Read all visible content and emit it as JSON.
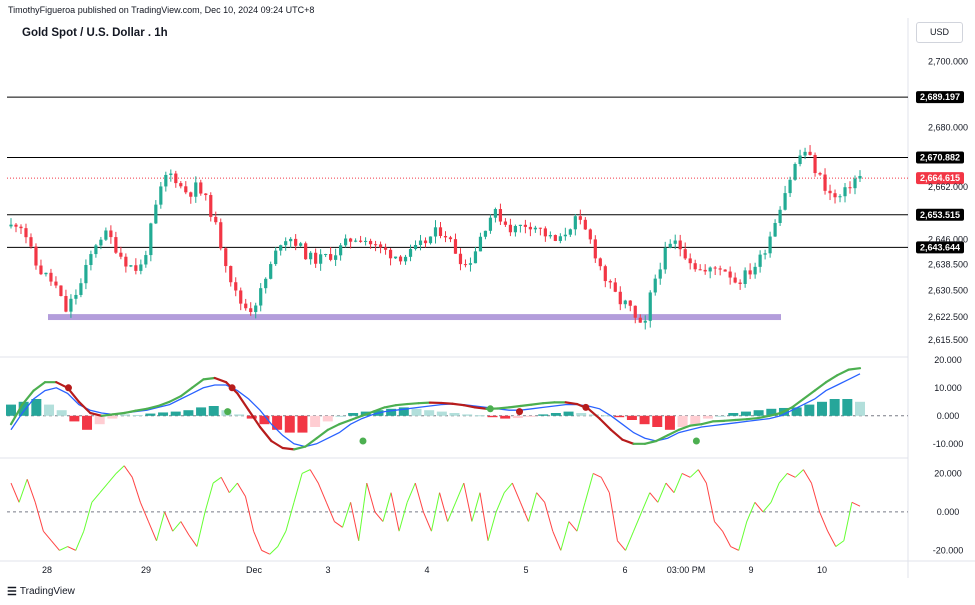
{
  "header": {
    "attribution": "TimothyFigueroa published on TradingView.com, Dec 10, 2024 09:24 UTC+8",
    "title": "Gold Spot / U.S. Dollar . 1h",
    "currency": "USD"
  },
  "footer": {
    "brand": "TradingView",
    "brand_icon": "tradingview-logo-icon"
  },
  "colors": {
    "bull": "#26a69a",
    "bull_candle": "#22ab94",
    "bear": "#f23645",
    "support_band": "#b39ddb",
    "macd_line": "#2962ff",
    "signal_up": "#4caf50",
    "signal_down": "#b71c1c",
    "osc_up": "#66ff33",
    "osc_down": "#ff4444",
    "hline": "#000000",
    "last_price": "#f23645"
  },
  "chart_data": [
    {
      "type": "candlestick",
      "title": "Gold Spot / U.S. Dollar . 1h",
      "ylim": [
        2611,
        2705
      ],
      "y_ticks": [
        {
          "value": 2700,
          "label": "2,700.000"
        },
        {
          "value": 2680,
          "label": "2,680.000"
        },
        {
          "value": 2662,
          "label": "2,662.000"
        },
        {
          "value": 2646,
          "label": "2,646.000"
        },
        {
          "value": 2638.5,
          "label": "2,638.500"
        },
        {
          "value": 2630.5,
          "label": "2,630.500"
        },
        {
          "value": 2622.5,
          "label": "2,622.500"
        },
        {
          "value": 2615.5,
          "label": "2,615.500"
        }
      ],
      "horizontal_levels": [
        {
          "value": 2689.197,
          "label": "2,689.197"
        },
        {
          "value": 2670.882,
          "label": "2,670.882"
        },
        {
          "value": 2653.515,
          "label": "2,653.515"
        },
        {
          "value": 2643.644,
          "label": "2,643.644"
        }
      ],
      "last_price": {
        "value": 2664.615,
        "label": "2,664.615"
      },
      "support_band": {
        "low": 2621.6,
        "high": 2623.4
      },
      "x_labels": [
        "28",
        "29",
        "Dec",
        "3",
        "4",
        "5",
        "6",
        "03:00 PM",
        "9",
        "10"
      ],
      "close_path": [
        2650,
        2652,
        2647,
        2639,
        2636,
        2634,
        2631,
        2624,
        2628,
        2632,
        2639,
        2645,
        2648,
        2646,
        2642,
        2639,
        2637,
        2638,
        2648,
        2658,
        2665,
        2666,
        2662,
        2660,
        2662,
        2659,
        2654,
        2646,
        2638,
        2630,
        2626,
        2625,
        2628,
        2634,
        2640,
        2646,
        2647,
        2645,
        2642,
        2640,
        2640,
        2641,
        2642,
        2644,
        2646,
        2647,
        2646,
        2644,
        2643,
        2642,
        2641,
        2641,
        2642,
        2644,
        2646,
        2648,
        2649,
        2645,
        2641,
        2638,
        2642,
        2648,
        2653,
        2654,
        2651,
        2649,
        2650,
        2651,
        2650,
        2648,
        2646,
        2645,
        2649,
        2652,
        2650,
        2646,
        2640,
        2634,
        2630,
        2627,
        2626,
        2621,
        2618,
        2631,
        2638,
        2643,
        2645,
        2643,
        2640,
        2637,
        2636,
        2637,
        2638,
        2636,
        2633,
        2635,
        2637,
        2640,
        2645,
        2652,
        2659,
        2665,
        2671,
        2673,
        2668,
        2664,
        2660,
        2658,
        2660,
        2664,
        2665
      ]
    },
    {
      "type": "macd",
      "ylim": [
        -14,
        21
      ],
      "y_ticks": [
        {
          "value": 20,
          "label": "20.000"
        },
        {
          "value": 10,
          "label": "10.000"
        },
        {
          "value": 0,
          "label": "0.000"
        },
        {
          "value": -10,
          "label": "-10.000"
        }
      ],
      "series": [
        {
          "key": "macd",
          "values": [
            -5,
            1,
            6,
            9,
            10,
            8,
            4,
            2,
            1,
            0.5,
            1,
            1.5,
            2,
            3,
            4,
            6,
            8,
            10,
            11,
            11,
            9,
            6,
            2,
            -3,
            -7,
            -10,
            -11,
            -10,
            -8,
            -6,
            -3,
            -1,
            0.5,
            1.5,
            2,
            2.5,
            3,
            3.5,
            4,
            4.2,
            4,
            3.5,
            3,
            2.5,
            2,
            2,
            2.5,
            3,
            3.5,
            4,
            4,
            3.5,
            2.5,
            0,
            -3,
            -6,
            -8,
            -9,
            -8,
            -6,
            -5,
            -4,
            -3.5,
            -3,
            -2.5,
            -2,
            -1.5,
            -1,
            0,
            2,
            4,
            6,
            9,
            11,
            13,
            15
          ]
        },
        {
          "key": "signal",
          "values": [
            -3,
            4,
            9,
            12,
            12,
            10,
            5,
            1,
            0,
            0.5,
            1,
            1.8,
            2.5,
            3.5,
            5,
            7,
            10,
            13,
            13.5,
            12,
            8,
            2,
            -4,
            -9,
            -11.5,
            -12,
            -11,
            -8,
            -5,
            -3,
            -1.5,
            0,
            1.5,
            3,
            3.8,
            4.2,
            4.5,
            4.7,
            4.6,
            4.3,
            3.8,
            3,
            2.5,
            2.6,
            3,
            3.5,
            4,
            4.5,
            4.8,
            4.8,
            4.2,
            2.5,
            -1,
            -5,
            -8.5,
            -10,
            -10,
            -9,
            -7,
            -5,
            -3.5,
            -3,
            -2,
            -1.8,
            -1.5,
            -1.2,
            -0.8,
            0,
            1,
            3,
            6,
            9,
            12,
            14.5,
            16.5,
            17
          ]
        },
        {
          "key": "histogram",
          "values": [
            4,
            5,
            6,
            4,
            2,
            -2,
            -5,
            -3,
            -1,
            0.5,
            0.3,
            0.8,
            1.2,
            1.5,
            2,
            3,
            3.5,
            2,
            0.5,
            -1,
            -3,
            -5,
            -6,
            -6,
            -4,
            -2,
            0,
            1,
            1.5,
            2,
            2.5,
            3,
            2.5,
            2,
            1.5,
            1,
            0.5,
            0.2,
            -0.5,
            -1,
            -0.8,
            -0.3,
            0.5,
            1,
            1.5,
            1,
            0.5,
            0.2,
            -0.5,
            -1.5,
            -3,
            -4,
            -5,
            -4,
            -3,
            -1,
            0,
            1,
            1.5,
            2,
            2.5,
            2.8,
            3,
            4,
            5,
            6,
            6,
            5
          ]
        },
        {
          "key": "crosses",
          "values": [
            [
              0.065,
              10
            ],
            [
              0.25,
              10
            ],
            [
              0.245,
              1.5
            ],
            [
              0.398,
              -9
            ],
            [
              0.542,
              2.5
            ],
            [
              0.575,
              1.5
            ],
            [
              0.65,
              3
            ],
            [
              0.775,
              -9
            ]
          ]
        }
      ]
    },
    {
      "type": "line",
      "ylim": [
        -25,
        27
      ],
      "y_ticks": [
        {
          "value": 20,
          "label": "20.000"
        },
        {
          "value": 0,
          "label": "0.000"
        },
        {
          "value": -20,
          "label": "-20.000"
        }
      ],
      "series": [
        {
          "key": "oscillator",
          "values": [
            15,
            5,
            17,
            5,
            -10,
            -15,
            -20,
            -18,
            -20,
            -10,
            5,
            10,
            15,
            20,
            24,
            18,
            5,
            -5,
            -15,
            0,
            -10,
            -5,
            -12,
            -18,
            0,
            15,
            18,
            10,
            15,
            8,
            -10,
            -20,
            -22,
            -18,
            -10,
            5,
            20,
            22,
            15,
            5,
            -5,
            -8,
            5,
            -15,
            15,
            0,
            -5,
            10,
            -10,
            5,
            15,
            0,
            -10,
            10,
            -5,
            5,
            15,
            -5,
            10,
            -15,
            0,
            10,
            15,
            5,
            -5,
            10,
            5,
            -10,
            -20,
            -5,
            -10,
            5,
            20,
            18,
            10,
            -15,
            -20,
            -10,
            0,
            10,
            5,
            15,
            10,
            20,
            18,
            22,
            15,
            -5,
            -10,
            -18,
            -20,
            -5,
            5,
            0,
            5,
            15,
            20,
            18,
            22,
            15,
            0,
            -10,
            -18,
            -15,
            5,
            3
          ]
        }
      ]
    }
  ]
}
